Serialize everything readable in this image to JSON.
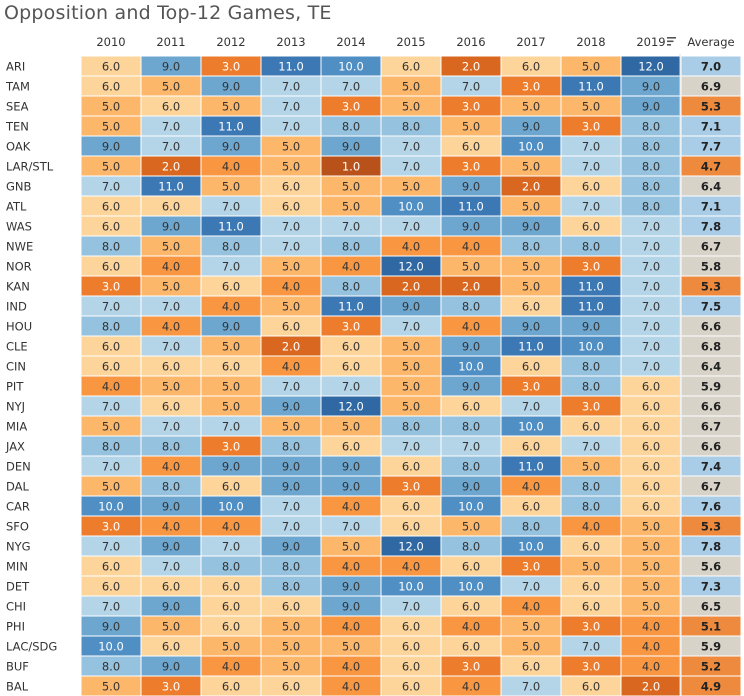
{
  "chart_data": {
    "type": "heatmap",
    "title": "Opposition and Top-12 Games, TE",
    "columns": [
      "2010",
      "2011",
      "2012",
      "2013",
      "2014",
      "2015",
      "2016",
      "2017",
      "2018",
      "2019"
    ],
    "average_label": "Average",
    "sort_icon": "sort-descending-icon",
    "rows": [
      {
        "team": "ARI",
        "values": [
          6.0,
          9.0,
          3.0,
          11.0,
          10.0,
          6.0,
          2.0,
          6.0,
          5.0,
          12.0
        ],
        "average": "7.0"
      },
      {
        "team": "TAM",
        "values": [
          6.0,
          5.0,
          9.0,
          7.0,
          7.0,
          5.0,
          7.0,
          3.0,
          11.0,
          9.0
        ],
        "average": "6.9"
      },
      {
        "team": "SEA",
        "values": [
          5.0,
          6.0,
          5.0,
          7.0,
          3.0,
          5.0,
          3.0,
          5.0,
          5.0,
          9.0
        ],
        "average": "5.3"
      },
      {
        "team": "TEN",
        "values": [
          5.0,
          7.0,
          11.0,
          7.0,
          8.0,
          8.0,
          5.0,
          9.0,
          3.0,
          8.0
        ],
        "average": "7.1"
      },
      {
        "team": "OAK",
        "values": [
          9.0,
          7.0,
          9.0,
          5.0,
          9.0,
          7.0,
          6.0,
          10.0,
          7.0,
          8.0
        ],
        "average": "7.7"
      },
      {
        "team": "LAR/STL",
        "values": [
          5.0,
          2.0,
          4.0,
          5.0,
          1.0,
          7.0,
          3.0,
          5.0,
          7.0,
          8.0
        ],
        "average": "4.7"
      },
      {
        "team": "GNB",
        "values": [
          7.0,
          11.0,
          5.0,
          6.0,
          5.0,
          5.0,
          9.0,
          2.0,
          6.0,
          8.0
        ],
        "average": "6.4"
      },
      {
        "team": "ATL",
        "values": [
          6.0,
          6.0,
          7.0,
          6.0,
          5.0,
          10.0,
          11.0,
          5.0,
          7.0,
          8.0
        ],
        "average": "7.1"
      },
      {
        "team": "WAS",
        "values": [
          6.0,
          9.0,
          11.0,
          7.0,
          7.0,
          7.0,
          9.0,
          9.0,
          6.0,
          7.0
        ],
        "average": "7.8"
      },
      {
        "team": "NWE",
        "values": [
          8.0,
          5.0,
          8.0,
          7.0,
          8.0,
          4.0,
          4.0,
          8.0,
          8.0,
          7.0
        ],
        "average": "6.7"
      },
      {
        "team": "NOR",
        "values": [
          6.0,
          4.0,
          7.0,
          5.0,
          4.0,
          12.0,
          5.0,
          5.0,
          3.0,
          7.0
        ],
        "average": "5.8"
      },
      {
        "team": "KAN",
        "values": [
          3.0,
          5.0,
          6.0,
          4.0,
          8.0,
          2.0,
          2.0,
          5.0,
          11.0,
          7.0
        ],
        "average": "5.3"
      },
      {
        "team": "IND",
        "values": [
          7.0,
          7.0,
          4.0,
          5.0,
          11.0,
          9.0,
          8.0,
          6.0,
          11.0,
          7.0
        ],
        "average": "7.5"
      },
      {
        "team": "HOU",
        "values": [
          8.0,
          4.0,
          9.0,
          6.0,
          3.0,
          7.0,
          4.0,
          9.0,
          9.0,
          7.0
        ],
        "average": "6.6"
      },
      {
        "team": "CLE",
        "values": [
          6.0,
          7.0,
          5.0,
          2.0,
          6.0,
          5.0,
          9.0,
          11.0,
          10.0,
          7.0
        ],
        "average": "6.8"
      },
      {
        "team": "CIN",
        "values": [
          6.0,
          6.0,
          6.0,
          4.0,
          6.0,
          5.0,
          10.0,
          6.0,
          8.0,
          7.0
        ],
        "average": "6.4"
      },
      {
        "team": "PIT",
        "values": [
          4.0,
          5.0,
          5.0,
          7.0,
          7.0,
          5.0,
          9.0,
          3.0,
          8.0,
          6.0
        ],
        "average": "5.9"
      },
      {
        "team": "NYJ",
        "values": [
          7.0,
          6.0,
          5.0,
          9.0,
          12.0,
          5.0,
          6.0,
          7.0,
          3.0,
          6.0
        ],
        "average": "6.6"
      },
      {
        "team": "MIA",
        "values": [
          5.0,
          7.0,
          7.0,
          5.0,
          5.0,
          8.0,
          8.0,
          10.0,
          6.0,
          6.0
        ],
        "average": "6.7"
      },
      {
        "team": "JAX",
        "values": [
          8.0,
          8.0,
          3.0,
          8.0,
          6.0,
          7.0,
          7.0,
          6.0,
          7.0,
          6.0
        ],
        "average": "6.6"
      },
      {
        "team": "DEN",
        "values": [
          7.0,
          4.0,
          9.0,
          9.0,
          9.0,
          6.0,
          8.0,
          11.0,
          5.0,
          6.0
        ],
        "average": "7.4"
      },
      {
        "team": "DAL",
        "values": [
          5.0,
          8.0,
          6.0,
          9.0,
          9.0,
          3.0,
          9.0,
          4.0,
          8.0,
          6.0
        ],
        "average": "6.7"
      },
      {
        "team": "CAR",
        "values": [
          10.0,
          9.0,
          10.0,
          7.0,
          4.0,
          6.0,
          10.0,
          6.0,
          8.0,
          6.0
        ],
        "average": "7.6"
      },
      {
        "team": "SFO",
        "values": [
          3.0,
          4.0,
          4.0,
          7.0,
          7.0,
          6.0,
          5.0,
          8.0,
          4.0,
          5.0
        ],
        "average": "5.3"
      },
      {
        "team": "NYG",
        "values": [
          7.0,
          9.0,
          7.0,
          9.0,
          5.0,
          12.0,
          8.0,
          10.0,
          6.0,
          5.0
        ],
        "average": "7.8"
      },
      {
        "team": "MIN",
        "values": [
          6.0,
          7.0,
          8.0,
          8.0,
          4.0,
          4.0,
          6.0,
          3.0,
          5.0,
          5.0
        ],
        "average": "5.6"
      },
      {
        "team": "DET",
        "values": [
          6.0,
          6.0,
          6.0,
          8.0,
          9.0,
          10.0,
          10.0,
          7.0,
          6.0,
          5.0
        ],
        "average": "7.3"
      },
      {
        "team": "CHI",
        "values": [
          7.0,
          9.0,
          6.0,
          6.0,
          9.0,
          7.0,
          6.0,
          4.0,
          6.0,
          5.0
        ],
        "average": "6.5"
      },
      {
        "team": "PHI",
        "values": [
          9.0,
          5.0,
          6.0,
          5.0,
          4.0,
          6.0,
          4.0,
          5.0,
          3.0,
          4.0
        ],
        "average": "5.1"
      },
      {
        "team": "LAC/SDG",
        "values": [
          10.0,
          6.0,
          5.0,
          5.0,
          5.0,
          6.0,
          6.0,
          5.0,
          7.0,
          4.0
        ],
        "average": "5.9"
      },
      {
        "team": "BUF",
        "values": [
          8.0,
          9.0,
          4.0,
          5.0,
          4.0,
          6.0,
          3.0,
          6.0,
          3.0,
          4.0
        ],
        "average": "5.2"
      },
      {
        "team": "BAL",
        "values": [
          5.0,
          3.0,
          6.0,
          6.0,
          4.0,
          6.0,
          4.0,
          7.0,
          6.0,
          2.0
        ],
        "average": "4.9"
      }
    ],
    "color_scale": {
      "1": "#b9521a",
      "2": "#d9671f",
      "3": "#ed7d2c",
      "4": "#f99642",
      "5": "#fdb76b",
      "6": "#fdd49a",
      "7": "#b4d5e8",
      "8": "#95c2df",
      "9": "#6da7d0",
      "10": "#4f8fc4",
      "11": "#3c79b4",
      "12": "#2f68a3"
    },
    "average_colors": {
      "low": "#ed8a3d",
      "mid": "#d8d3c8",
      "high": "#a9cde6"
    }
  }
}
